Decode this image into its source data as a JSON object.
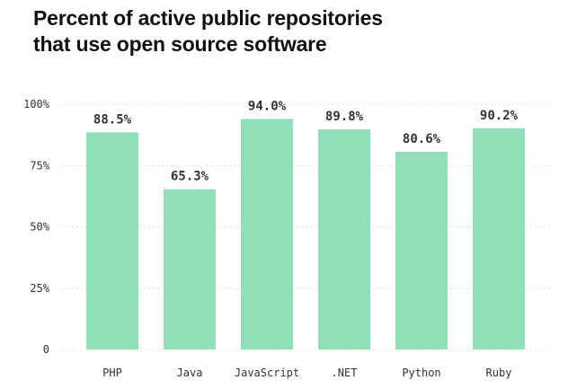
{
  "chart_data": {
    "type": "bar",
    "title_lines": [
      "Percent of active public repositories",
      "that use open source software"
    ],
    "categories": [
      "PHP",
      "Java",
      "JavaScript",
      ".NET",
      "Python",
      "Ruby"
    ],
    "values": [
      88.5,
      65.3,
      94.0,
      89.8,
      80.6,
      90.2
    ],
    "value_labels": [
      "88.5%",
      "65.3%",
      "94.0%",
      "89.8%",
      "80.6%",
      "90.2%"
    ],
    "yticks": [
      0,
      25,
      50,
      75,
      100
    ],
    "ytick_labels": [
      "0",
      "25%",
      "50%",
      "75%",
      "100%"
    ],
    "ylim": [
      0,
      100
    ],
    "grid": true,
    "bar_color": "#90dfb8",
    "xlabel": "",
    "ylabel": ""
  }
}
